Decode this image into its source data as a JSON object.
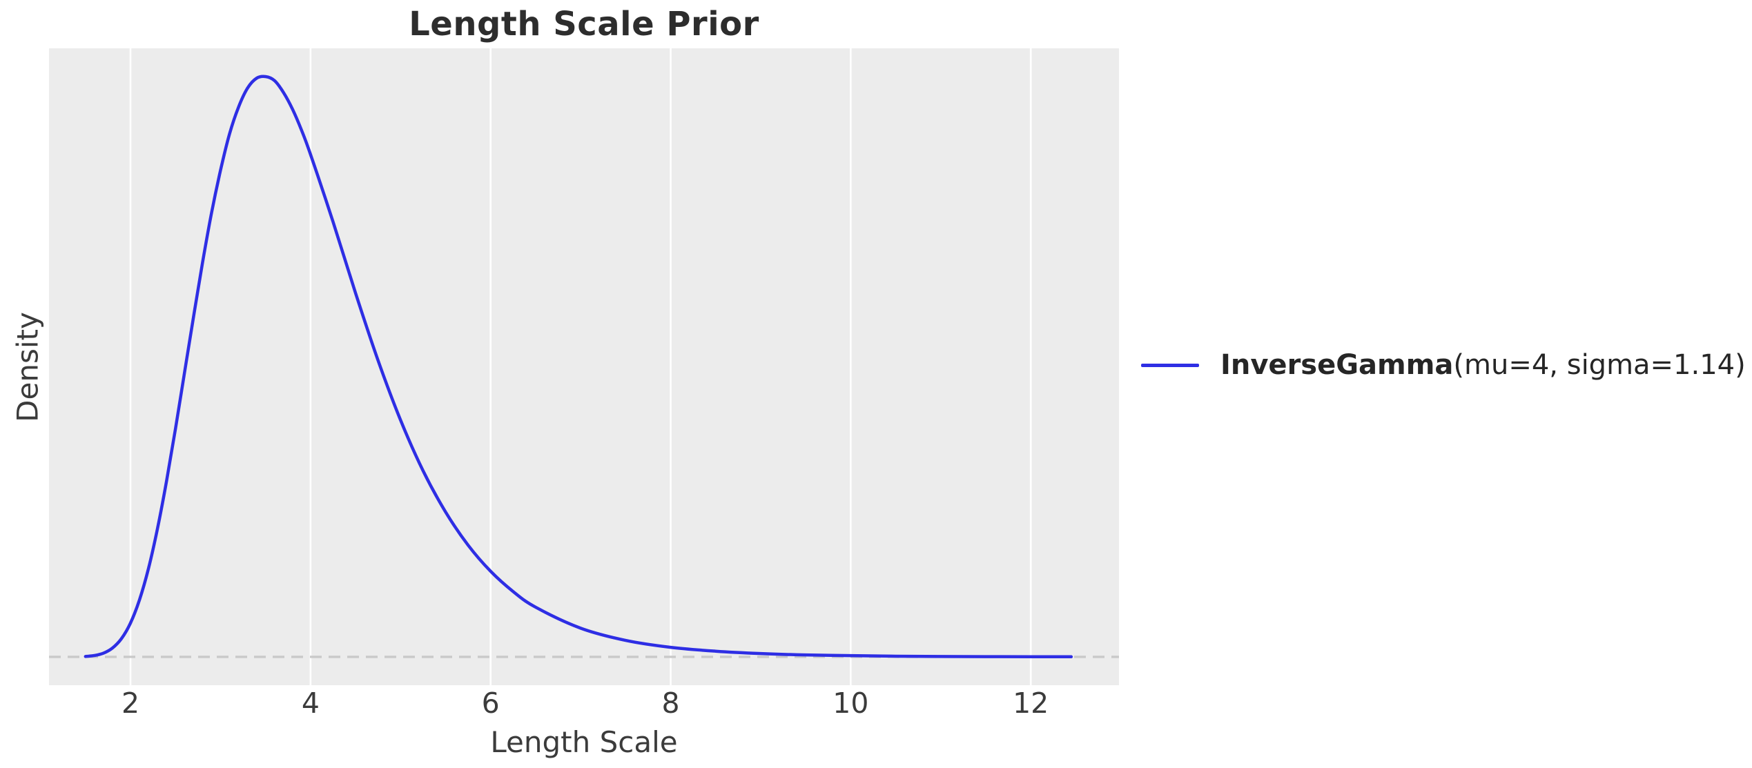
{
  "figure": {
    "background": "#ffffff",
    "plot_background": "#ececec",
    "grid_color": "#ffffff"
  },
  "chart_data": {
    "type": "line",
    "title": "Length Scale Prior",
    "xlabel": "Length Scale",
    "ylabel": "Density",
    "x_ticks": [
      2,
      4,
      6,
      8,
      10,
      12
    ],
    "y_ticks": [],
    "xlim": [
      1.095,
      12.98
    ],
    "ylim": [
      -0.0204,
      0.4385
    ],
    "grid": "vertical-only",
    "legend_position": "right-outside",
    "zero_line": {
      "y": 0,
      "style": "dashed",
      "color": "#c9c9c9",
      "width": 3.4,
      "dash": "17 10"
    },
    "series": [
      {
        "name": "InverseGamma(mu=4, sigma=1.14)",
        "legend_label_bold": "InverseGamma",
        "legend_label_regular": "(mu=4, sigma=1.14)",
        "color": "#2e2ee4",
        "line_width": 4.5,
        "distribution": "InverseGamma",
        "params": {
          "mu": 4,
          "sigma": 1.14
        },
        "points": [
          [
            1.5,
            0.0003
          ],
          [
            1.6,
            0.001
          ],
          [
            1.7,
            0.0027
          ],
          [
            1.8,
            0.0064
          ],
          [
            1.9,
            0.0132
          ],
          [
            2.0,
            0.0244
          ],
          [
            2.1,
            0.0411
          ],
          [
            2.2,
            0.0637
          ],
          [
            2.3,
            0.0925
          ],
          [
            2.4,
            0.1265
          ],
          [
            2.5,
            0.1645
          ],
          [
            2.6,
            0.2048
          ],
          [
            2.7,
            0.2449
          ],
          [
            2.8,
            0.284
          ],
          [
            2.9,
            0.3198
          ],
          [
            3.0,
            0.3506
          ],
          [
            3.1,
            0.3768
          ],
          [
            3.2,
            0.3961
          ],
          [
            3.3,
            0.4098
          ],
          [
            3.4,
            0.4169
          ],
          [
            3.5,
            0.4181
          ],
          [
            3.6,
            0.4152
          ],
          [
            3.7,
            0.4066
          ],
          [
            3.8,
            0.3946
          ],
          [
            3.9,
            0.3795
          ],
          [
            4.0,
            0.362
          ],
          [
            4.25,
            0.3135
          ],
          [
            4.5,
            0.2621
          ],
          [
            4.75,
            0.2136
          ],
          [
            5.0,
            0.1706
          ],
          [
            5.25,
            0.1341
          ],
          [
            5.5,
            0.1044
          ],
          [
            5.75,
            0.0805
          ],
          [
            6.0,
            0.0617
          ],
          [
            6.25,
            0.0471
          ],
          [
            6.5,
            0.0358
          ],
          [
            7.0,
            0.0207
          ],
          [
            7.5,
            0.0119
          ],
          [
            8.0,
            0.0069
          ],
          [
            8.5,
            0.0041
          ],
          [
            9.0,
            0.0024
          ],
          [
            9.5,
            0.0014
          ],
          [
            10.0,
            0.0009
          ],
          [
            10.5,
            0.0005
          ],
          [
            11.0,
            0.0003
          ],
          [
            11.5,
            0.0002
          ],
          [
            12.0,
            0.00013
          ],
          [
            12.45,
            9e-05
          ]
        ]
      }
    ]
  }
}
